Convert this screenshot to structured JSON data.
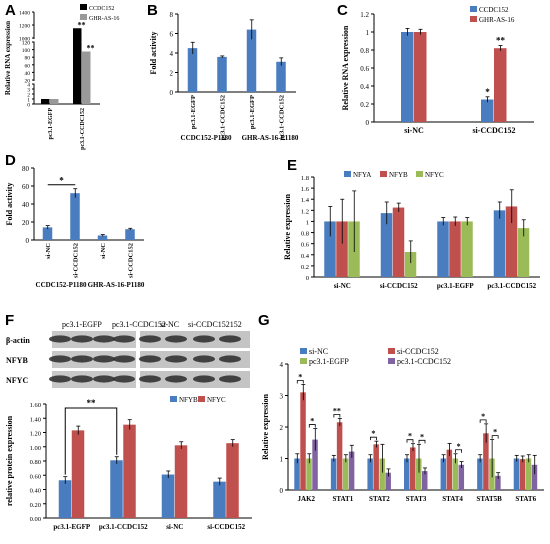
{
  "panel_labels": [
    "A",
    "B",
    "C",
    "D",
    "E",
    "F",
    "G"
  ],
  "chart_data": [
    {
      "panel": "A",
      "type": "bar",
      "ylabel": "Relative RNA expression",
      "categories": [
        "pc3.1-EGFP",
        "pc3.1-CCDC152"
      ],
      "legend": [
        "CCDC152",
        "GHR-AS-16"
      ],
      "series": [
        {
          "name": "CCDC152",
          "values": [
            1,
            1150
          ],
          "color": "#000000"
        },
        {
          "name": "GHR-AS-16",
          "values": [
            1,
            95
          ],
          "color": "#999999"
        }
      ],
      "y_ticks": [
        0,
        1,
        2,
        3,
        4,
        20,
        40,
        60,
        80,
        100,
        120,
        1000,
        1200,
        1400
      ],
      "annotations": [
        "**",
        "**"
      ]
    },
    {
      "panel": "B",
      "type": "bar",
      "ylabel": "Fold activity",
      "categories": [
        "pc3.1-EGFP",
        "pc3.1-CCDC152",
        "pc3.1-EGFP",
        "pc3.1-CCDC152"
      ],
      "groups": [
        "CCDC152-P1180",
        "GHR-AS-16-P1180"
      ],
      "values": [
        4.5,
        3.6,
        6.4,
        3.1
      ],
      "errors": [
        0.6,
        0.1,
        1.0,
        0.4
      ],
      "ylim": [
        0,
        8
      ],
      "yticks": [
        0,
        2,
        4,
        6,
        8
      ],
      "color": "#4a7dbf"
    },
    {
      "panel": "C",
      "type": "bar",
      "ylabel": "Relative RNA expression",
      "categories": [
        "si-NC",
        "si-CCDC152"
      ],
      "series": [
        {
          "name": "CCDC152",
          "values": [
            1.0,
            0.25
          ],
          "errors": [
            0.04,
            0.03
          ],
          "color": "#4a7dbf"
        },
        {
          "name": "GHR-AS-16",
          "values": [
            1.0,
            0.82
          ],
          "errors": [
            0.03,
            0.03
          ],
          "color": "#c0504d"
        }
      ],
      "ylim": [
        0,
        1.2
      ],
      "yticks": [
        "0",
        "0.2",
        "0.4",
        "0.6",
        "0.8",
        "1",
        "1.2"
      ],
      "annotations": [
        "*",
        "**"
      ]
    },
    {
      "panel": "D",
      "type": "bar",
      "ylabel": "Fold activity",
      "categories": [
        "si-NC",
        "si-CCDC152",
        "si-NC",
        "si-CCDC152"
      ],
      "groups": [
        "CCDC152-P1180",
        "GHR-AS-16-P1180"
      ],
      "values": [
        14,
        52,
        5,
        12
      ],
      "errors": [
        2,
        5,
        1,
        1
      ],
      "ylim": [
        0,
        80
      ],
      "yticks": [
        0,
        20,
        40,
        60,
        80
      ],
      "annotations": [
        "*"
      ],
      "color": "#4a7dbf"
    },
    {
      "panel": "E",
      "type": "bar",
      "ylabel": "Relative expression",
      "categories": [
        "si-NC",
        "si-CCDC152",
        "pc3.1-EGFP",
        "pc3.1-CCDC152"
      ],
      "series": [
        {
          "name": "NFYA",
          "values": [
            1.0,
            1.15,
            1.0,
            1.2
          ],
          "errors": [
            0.27,
            0.2,
            0.07,
            0.15
          ],
          "color": "#4a7dbf"
        },
        {
          "name": "NFYB",
          "values": [
            1.0,
            1.25,
            1.0,
            1.27
          ],
          "errors": [
            0.4,
            0.08,
            0.08,
            0.3
          ],
          "color": "#c0504d"
        },
        {
          "name": "NFYC",
          "values": [
            1.0,
            0.45,
            1.0,
            0.88
          ],
          "errors": [
            0.55,
            0.2,
            0.07,
            0.15
          ],
          "color": "#9bbb59"
        }
      ],
      "ylim": [
        0,
        1.8
      ],
      "yticks": [
        "0",
        "0.2",
        "0.4",
        "0.6",
        "0.8",
        "1",
        "1.2",
        "1.4",
        "1.6",
        "1.8"
      ]
    },
    {
      "panel": "F",
      "type": "bar",
      "ylabel": "relative protein expression",
      "blot_lanes": [
        "pc3.1-EGFP",
        "pc3.1-CCDC152",
        "si-NC",
        "si-CCDC152152"
      ],
      "blot_rows": [
        "β-actin",
        "NFYB",
        "NFYC"
      ],
      "categories": [
        "pc3.1-EGFP",
        "pc3.1-CCDC152",
        "si-NC",
        "si-CCDC152"
      ],
      "series": [
        {
          "name": "NFYB",
          "values": [
            0.53,
            0.81,
            0.61,
            0.51
          ],
          "errors": [
            0.05,
            0.05,
            0.05,
            0.05
          ],
          "color": "#4a7dbf"
        },
        {
          "name": "NFYC",
          "values": [
            1.23,
            1.31,
            1.02,
            1.05
          ],
          "errors": [
            0.06,
            0.07,
            0.05,
            0.05
          ],
          "color": "#c0504d"
        }
      ],
      "ylim": [
        0,
        1.6
      ],
      "yticks": [
        "0.00",
        "0.20",
        "0.40",
        "0.60",
        "0.80",
        "1.00",
        "1.20",
        "1.40",
        "1.60"
      ],
      "annotations": [
        "**"
      ]
    },
    {
      "panel": "G",
      "type": "bar",
      "ylabel": "Relative expression",
      "categories": [
        "JAK2",
        "STAT1",
        "STAT2",
        "STAT3",
        "STAT4",
        "STAT5B",
        "STAT6"
      ],
      "series": [
        {
          "name": "si-NC",
          "values": [
            1.0,
            1.0,
            1.0,
            1.0,
            1.0,
            1.0,
            1.0
          ],
          "errors": [
            0.15,
            0.1,
            0.12,
            0.12,
            0.12,
            0.12,
            0.1
          ],
          "color": "#4a7dbf"
        },
        {
          "name": "si-CCDC152",
          "values": [
            3.1,
            2.15,
            1.45,
            1.35,
            1.28,
            1.8,
            0.98
          ],
          "errors": [
            0.25,
            0.12,
            0.1,
            0.12,
            0.2,
            0.3,
            0.1
          ],
          "color": "#c0504d"
        },
        {
          "name": "pc3.1-EGFP",
          "values": [
            1.0,
            1.0,
            1.0,
            1.0,
            1.0,
            1.0,
            1.0
          ],
          "errors": [
            0.15,
            0.12,
            0.45,
            0.45,
            0.15,
            0.6,
            0.12
          ],
          "color": "#9bbb59"
        },
        {
          "name": "pc3.1-CCDC152",
          "values": [
            1.6,
            1.22,
            0.55,
            0.6,
            0.8,
            0.45,
            0.8
          ],
          "errors": [
            0.35,
            0.2,
            0.12,
            0.1,
            0.1,
            0.1,
            0.3
          ],
          "color": "#8064a2"
        }
      ],
      "ylim": [
        0,
        4
      ],
      "yticks": [
        0,
        1,
        2,
        3,
        4
      ],
      "annotations": [
        "*",
        "*",
        "**",
        "*",
        "*",
        "*",
        "*",
        "*",
        "*",
        "*"
      ]
    }
  ]
}
